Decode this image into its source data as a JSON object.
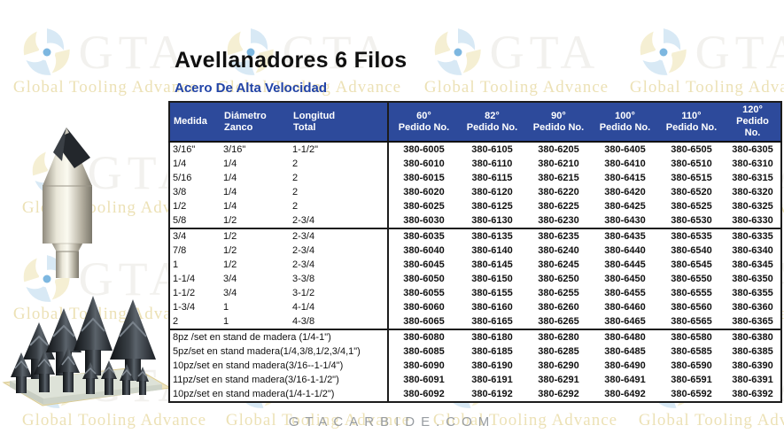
{
  "page": {
    "title": "Avellanadores 6 Filos",
    "subtitle": "Acero De Alta Velocidad",
    "footer": "GTACARBIDE.COM"
  },
  "watermark": {
    "brand": "GTA",
    "tagline": "Global Tooling Advance"
  },
  "colors": {
    "header_bg": "#2d4a9b",
    "subtitle_blue": "#2244a8",
    "table_border": "#1c1c1c",
    "footer_gray": "#989da2"
  },
  "images": {
    "single_countersink": "avellanador 6 filos",
    "set_countersink": "juego de avellanadores en stand de madera"
  },
  "table": {
    "columns": [
      {
        "label": "Medida",
        "sub": ""
      },
      {
        "label": "Diámetro",
        "sub": "Zanco"
      },
      {
        "label": "Longitud",
        "sub": "Total"
      },
      {
        "label": "60°",
        "sub": "Pedido No."
      },
      {
        "label": "82°",
        "sub": "Pedido No."
      },
      {
        "label": "90°",
        "sub": "Pedido No."
      },
      {
        "label": "100°",
        "sub": "Pedido No."
      },
      {
        "label": "110°",
        "sub": "Pedido No."
      },
      {
        "label": "120°",
        "sub": "Pedido No."
      }
    ],
    "rows": [
      {
        "type": "size",
        "medida": "3/16\"",
        "zanco": "3/16\"",
        "longitud": "1-1/2\"",
        "pedidos": [
          "380-6005",
          "380-6105",
          "380-6205",
          "380-6405",
          "380-6505",
          "380-6305"
        ]
      },
      {
        "type": "size",
        "medida": "1/4",
        "zanco": "1/4",
        "longitud": "2",
        "pedidos": [
          "380-6010",
          "380-6110",
          "380-6210",
          "380-6410",
          "380-6510",
          "380-6310"
        ]
      },
      {
        "type": "size",
        "medida": "5/16",
        "zanco": "1/4",
        "longitud": "2",
        "pedidos": [
          "380-6015",
          "380-6115",
          "380-6215",
          "380-6415",
          "380-6515",
          "380-6315"
        ]
      },
      {
        "type": "size",
        "medida": "3/8",
        "zanco": "1/4",
        "longitud": "2",
        "pedidos": [
          "380-6020",
          "380-6120",
          "380-6220",
          "380-6420",
          "380-6520",
          "380-6320"
        ]
      },
      {
        "type": "size",
        "medida": "1/2",
        "zanco": "1/4",
        "longitud": "2",
        "pedidos": [
          "380-6025",
          "380-6125",
          "380-6225",
          "380-6425",
          "380-6525",
          "380-6325"
        ]
      },
      {
        "type": "size",
        "medida": "5/8",
        "zanco": "1/2",
        "longitud": "2-3/4",
        "pedidos": [
          "380-6030",
          "380-6130",
          "380-6230",
          "380-6430",
          "380-6530",
          "380-6330"
        ]
      },
      {
        "type": "size",
        "divider_before": true,
        "medida": "3/4",
        "zanco": "1/2",
        "longitud": "2-3/4",
        "pedidos": [
          "380-6035",
          "380-6135",
          "380-6235",
          "380-6435",
          "380-6535",
          "380-6335"
        ]
      },
      {
        "type": "size",
        "medida": "7/8",
        "zanco": "1/2",
        "longitud": "2-3/4",
        "pedidos": [
          "380-6040",
          "380-6140",
          "380-6240",
          "380-6440",
          "380-6540",
          "380-6340"
        ]
      },
      {
        "type": "size",
        "medida": "1",
        "zanco": "1/2",
        "longitud": "2-3/4",
        "pedidos": [
          "380-6045",
          "380-6145",
          "380-6245",
          "380-6445",
          "380-6545",
          "380-6345"
        ]
      },
      {
        "type": "size",
        "medida": "1-1/4",
        "zanco": "3/4",
        "longitud": "3-3/8",
        "pedidos": [
          "380-6050",
          "380-6150",
          "380-6250",
          "380-6450",
          "380-6550",
          "380-6350"
        ]
      },
      {
        "type": "size",
        "medida": "1-1/2",
        "zanco": "3/4",
        "longitud": "3-1/2",
        "pedidos": [
          "380-6055",
          "380-6155",
          "380-6255",
          "380-6455",
          "380-6555",
          "380-6355"
        ]
      },
      {
        "type": "size",
        "medida": "1-3/4",
        "zanco": "1",
        "longitud": "4-1/4",
        "pedidos": [
          "380-6060",
          "380-6160",
          "380-6260",
          "380-6460",
          "380-6560",
          "380-6360"
        ]
      },
      {
        "type": "size",
        "medida": "2",
        "zanco": "1",
        "longitud": "4-3/8",
        "pedidos": [
          "380-6065",
          "380-6165",
          "380-6265",
          "380-6465",
          "380-6565",
          "380-6365"
        ]
      },
      {
        "type": "set",
        "divider_before": true,
        "label": "8pz /set en stand de madera (1/4-1\")",
        "pedidos": [
          "380-6080",
          "380-6180",
          "380-6280",
          "380-6480",
          "380-6580",
          "380-6380"
        ]
      },
      {
        "type": "set",
        "label": "5pz/set en stand madera(1/4,3/8,1/2,3/4,1\")",
        "pedidos": [
          "380-6085",
          "380-6185",
          "380-6285",
          "380-6485",
          "380-6585",
          "380-6385"
        ]
      },
      {
        "type": "set",
        "label": "10pz/set en stand madera(3/16--1-1/4\")",
        "pedidos": [
          "380-6090",
          "380-6190",
          "380-6290",
          "380-6490",
          "380-6590",
          "380-6390"
        ]
      },
      {
        "type": "set",
        "label": "11pz/set en stand madera(3/16-1-1/2\")",
        "pedidos": [
          "380-6091",
          "380-6191",
          "380-6291",
          "380-6491",
          "380-6591",
          "380-6391"
        ]
      },
      {
        "type": "set",
        "label": "10pz/set en stand madera(1/4-1-1/2\")",
        "pedidos": [
          "380-6092",
          "380-6192",
          "380-6292",
          "380-6492",
          "380-6592",
          "380-6392"
        ]
      }
    ]
  }
}
